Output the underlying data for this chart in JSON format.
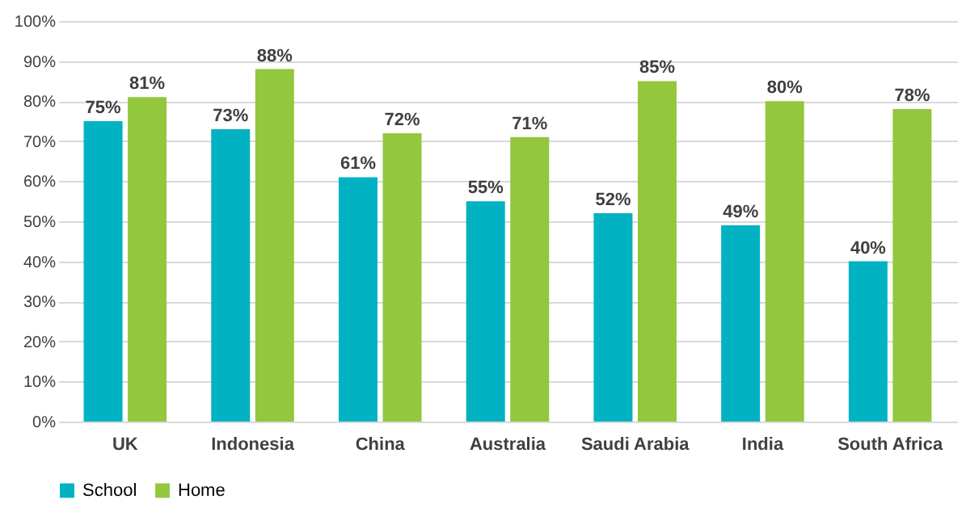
{
  "chart_data": {
    "type": "bar",
    "categories": [
      "UK",
      "Indonesia",
      "China",
      "Australia",
      "Saudi Arabia",
      "India",
      "South Africa"
    ],
    "series": [
      {
        "name": "School",
        "color": "#00b2c2",
        "values": [
          75,
          73,
          61,
          55,
          52,
          49,
          40
        ],
        "value_labels": [
          "75%",
          "73%",
          "61%",
          "55%",
          "52%",
          "49%",
          "40%"
        ]
      },
      {
        "name": "Home",
        "color": "#92c73e",
        "values": [
          81,
          88,
          72,
          71,
          85,
          80,
          78
        ],
        "value_labels": [
          "81%",
          "88%",
          "72%",
          "71%",
          "85%",
          "80%",
          "78%"
        ]
      }
    ],
    "ylim": [
      0,
      100
    ],
    "yticks": [
      {
        "value": 0,
        "label": "0%"
      },
      {
        "value": 10,
        "label": "10%"
      },
      {
        "value": 20,
        "label": "20%"
      },
      {
        "value": 30,
        "label": "30%"
      },
      {
        "value": 40,
        "label": "40%"
      },
      {
        "value": 50,
        "label": "50%"
      },
      {
        "value": 60,
        "label": "60%"
      },
      {
        "value": 70,
        "label": "70%"
      },
      {
        "value": 80,
        "label": "80%"
      },
      {
        "value": 90,
        "label": "90%"
      },
      {
        "value": 100,
        "label": "100%"
      }
    ],
    "grid": "y",
    "legend": "bottom"
  }
}
